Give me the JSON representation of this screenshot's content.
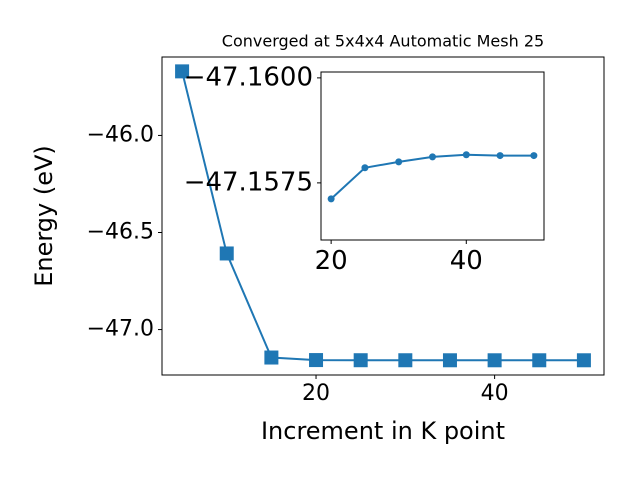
{
  "chart_data": [
    {
      "type": "line",
      "title": "Converged at 5x4x4 Automatic Mesh 25",
      "x_label": "Increment in K point",
      "y_label": "Energy (eV)",
      "x": [
        5,
        10,
        15,
        20,
        25,
        30,
        35,
        40,
        45,
        50
      ],
      "series": [
        {
          "color": "#1f77b4",
          "marker": "square",
          "values": [
            -45.67,
            -46.608,
            -47.144,
            -47.15712,
            -47.15786,
            -47.158,
            -47.15812,
            -47.15817,
            -47.15815,
            -47.15815
          ]
        }
      ],
      "xlim": [
        2.75,
        52.25
      ],
      "ylim": [
        -47.234,
        -45.596
      ],
      "xticks": [
        20,
        40
      ],
      "yticks": [
        {
          "value": -46.0,
          "label": "−46.0"
        },
        {
          "value": -46.5,
          "label": "−46.5"
        },
        {
          "value": -47.0,
          "label": "−47.0"
        }
      ]
    },
    {
      "type": "line",
      "x": [
        20,
        25,
        30,
        35,
        40,
        45,
        50
      ],
      "series": [
        {
          "color": "#1f77b4",
          "marker": "circle",
          "values": [
            -47.15712,
            -47.15786,
            -47.158,
            -47.15812,
            -47.15817,
            -47.15815,
            -47.15815
          ]
        }
      ],
      "xlim": [
        18.5,
        51.5
      ],
      "ylim": [
        -47.15614,
        -47.16014
      ],
      "xticks": [
        20,
        40
      ],
      "yticks": [
        {
          "value": -47.16,
          "label": "−47.1600"
        },
        {
          "value": -47.1575,
          "label": "−47.1575"
        }
      ]
    }
  ]
}
